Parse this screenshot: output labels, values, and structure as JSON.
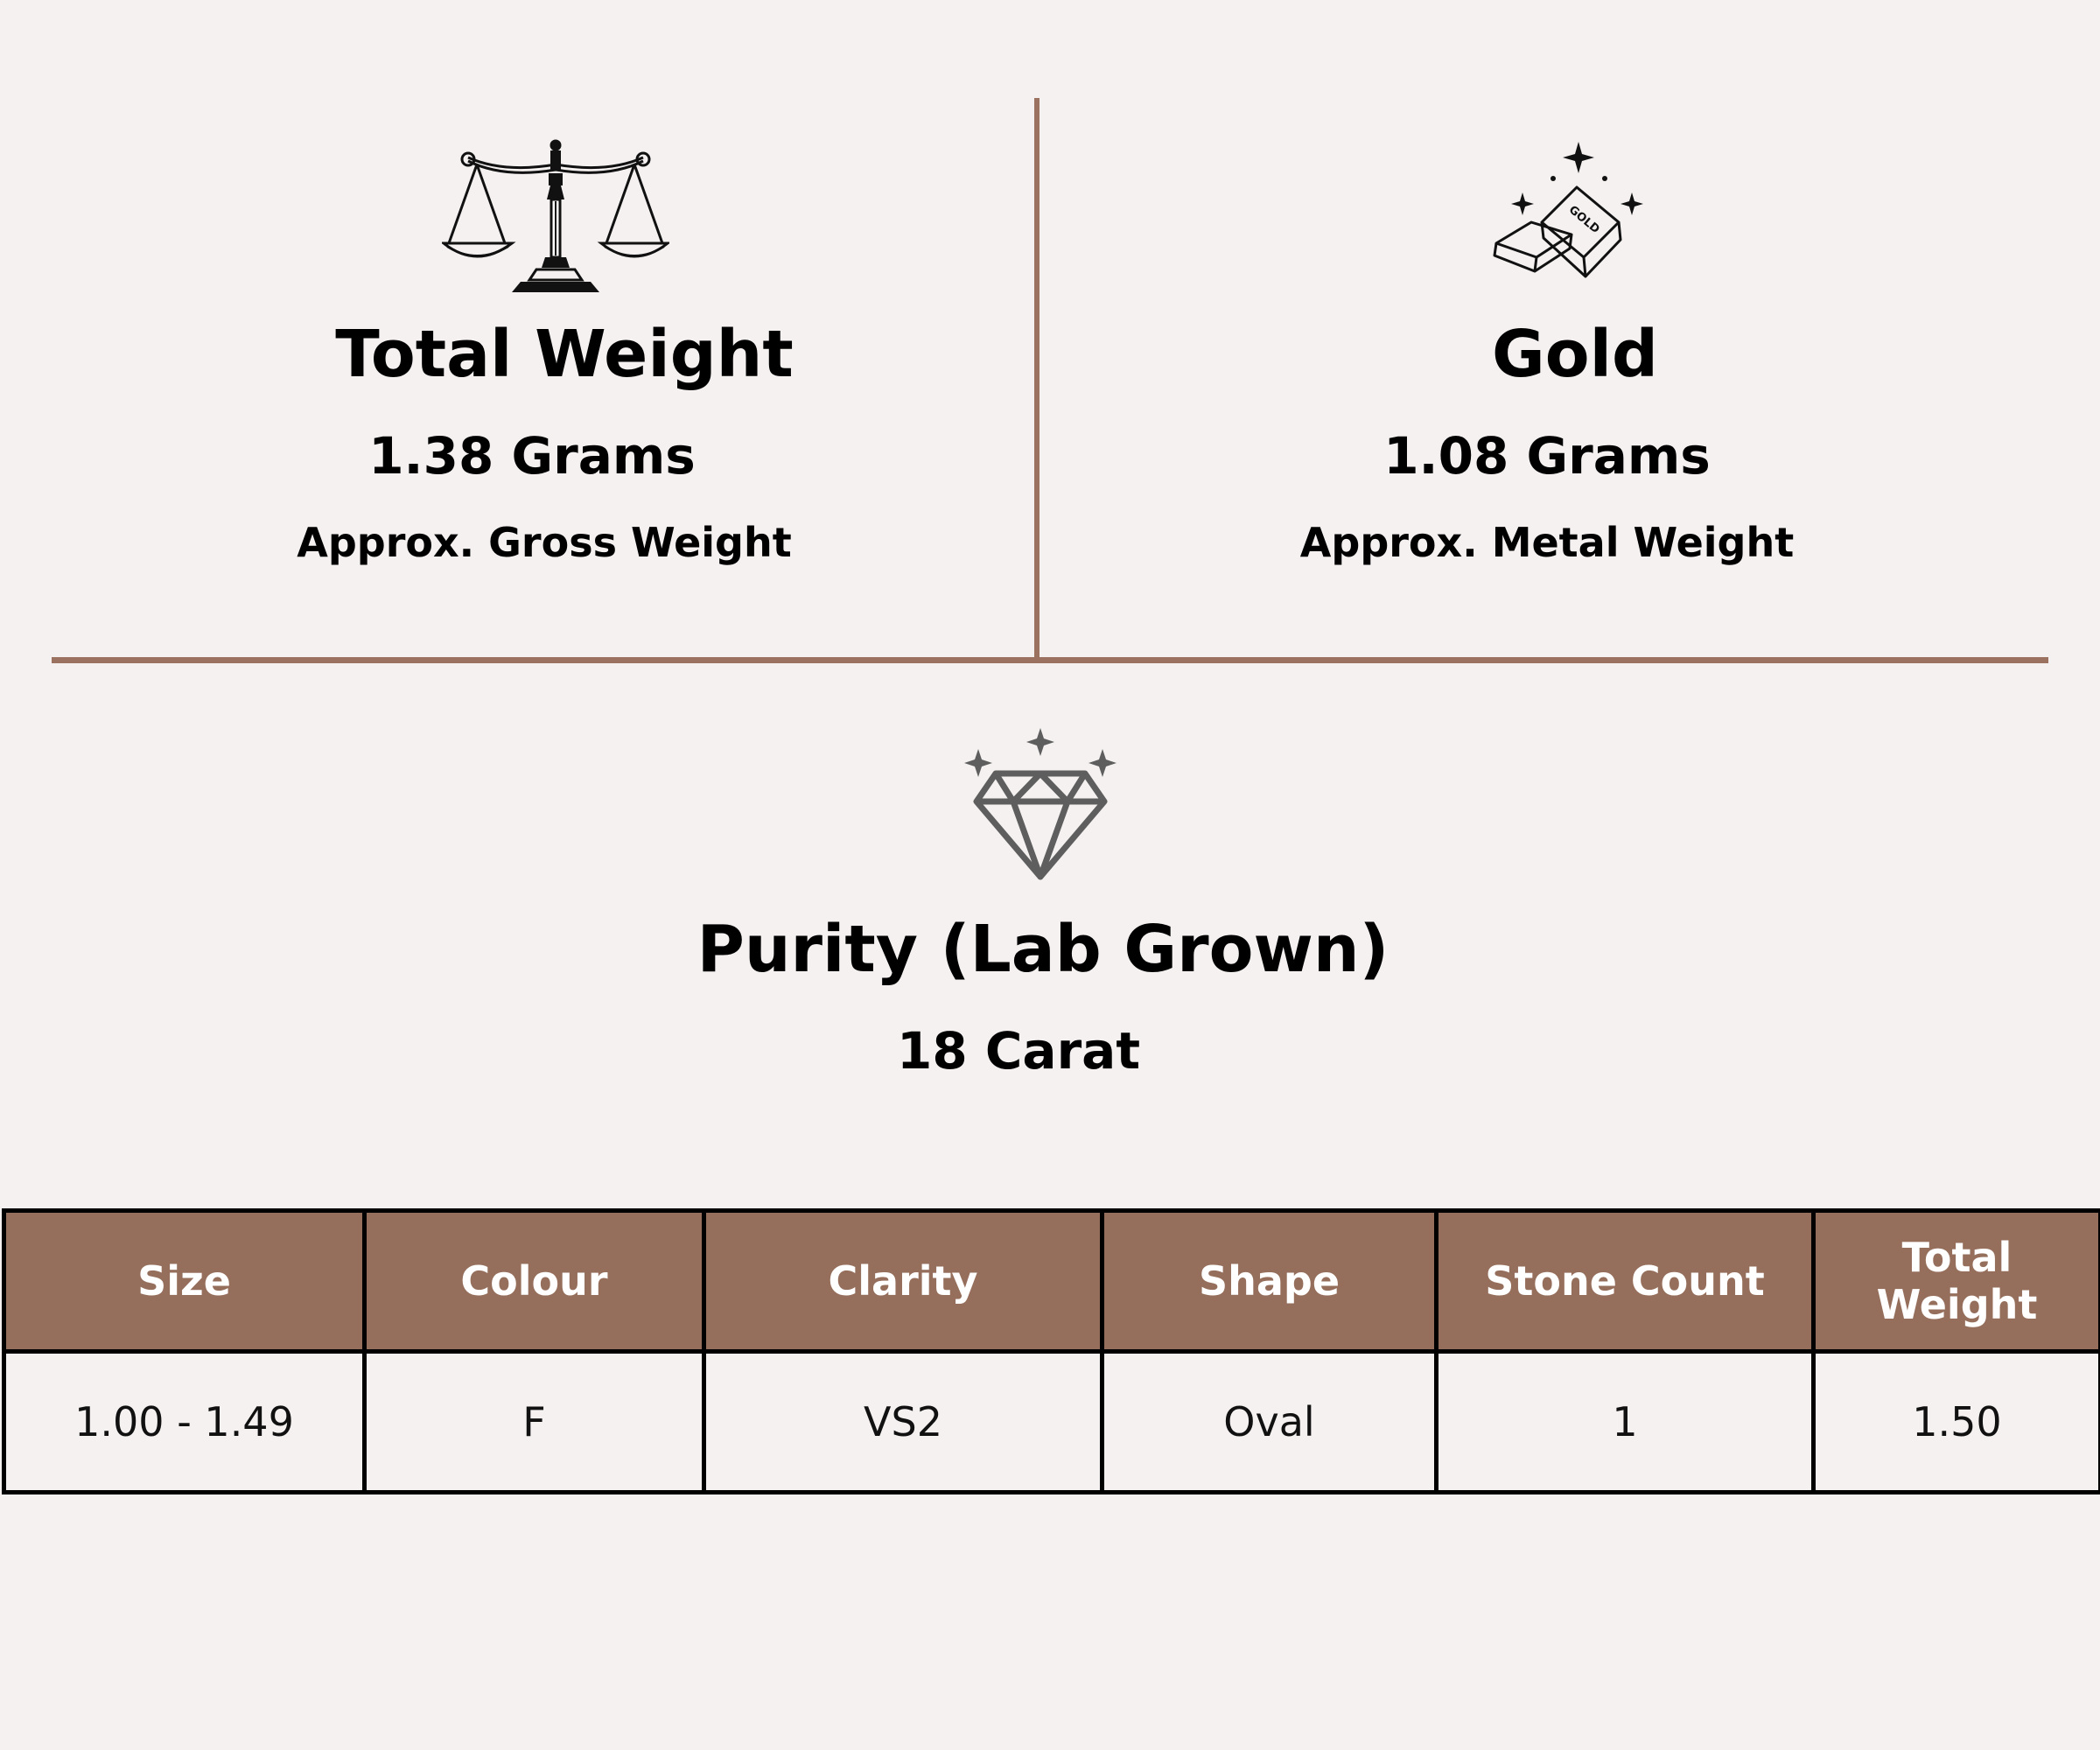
{
  "total_weight": {
    "title": "Total Weight",
    "value": "1.38 Grams",
    "caption": "Approx. Gross Weight",
    "icon": "balance-scale-icon"
  },
  "gold": {
    "title": "Gold",
    "value": "1.08 Grams",
    "caption": "Approx. Metal Weight",
    "icon": "gold-bars-icon",
    "bar_label": "GOLD"
  },
  "purity": {
    "title": "Purity (Lab Grown)",
    "value": "18 Carat",
    "icon": "diamond-icon"
  },
  "table": {
    "headers": [
      "Size",
      "Colour",
      "Clarity",
      "Shape",
      "Stone Count",
      "Total Weight"
    ],
    "rows": [
      [
        "1.00 - 1.49",
        "F",
        "VS2",
        "Oval",
        "1",
        "1.50"
      ]
    ]
  },
  "colors": {
    "accent": "#9b7260",
    "header_bg": "#966f5c",
    "background": "#f4f1f0"
  }
}
